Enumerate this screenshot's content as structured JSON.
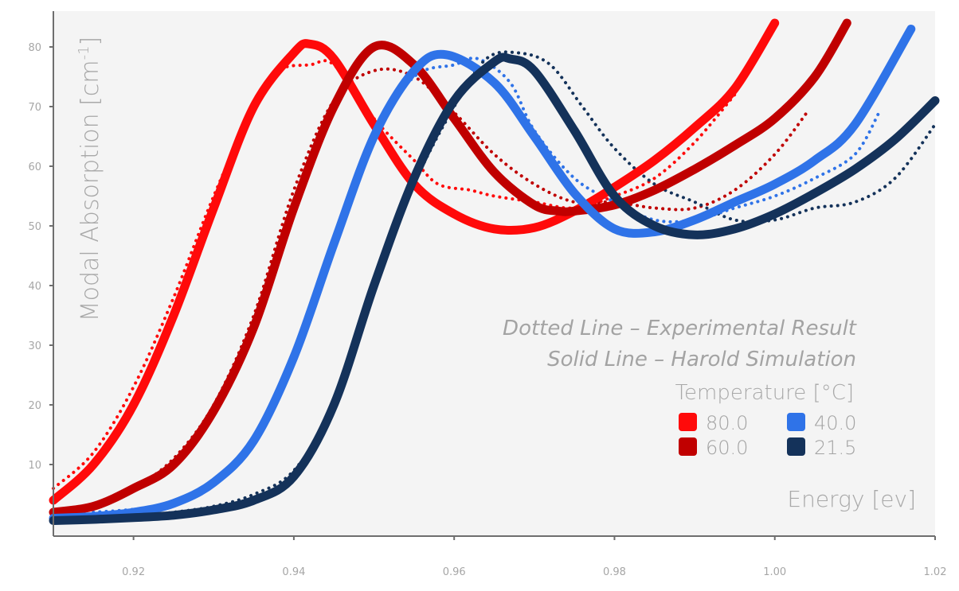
{
  "chart_data": {
    "type": "line",
    "title": "",
    "xlabel": "Energy [ev]",
    "ylabel": "Modal Absorption [cm",
    "ylabel_superscript": "-1",
    "ylabel_close": "]",
    "xlim": [
      0.91,
      1.02
    ],
    "ylim": [
      -2,
      86
    ],
    "xticks": [
      0.92,
      0.94,
      0.96,
      0.98,
      1.0,
      1.02
    ],
    "xtick_labels": [
      "0.92",
      "0.94",
      "0.96",
      "0.98",
      "1.00",
      "1.02"
    ],
    "yticks": [
      10,
      20,
      30,
      40,
      50,
      60,
      70,
      80
    ],
    "ytick_labels": [
      "10",
      "20",
      "30",
      "40",
      "50",
      "60",
      "70",
      "80"
    ],
    "annotations": [
      "Dotted Line – Experimental Result",
      "Solid Line – Harold Simulation"
    ],
    "legend_title": "Temperature [°C]",
    "legend_position": "lower-right",
    "series": [
      {
        "name": "80.0",
        "color": "#ff0a0a",
        "simulation": {
          "x": [
            0.91,
            0.915,
            0.92,
            0.925,
            0.93,
            0.935,
            0.94,
            0.942,
            0.945,
            0.95,
            0.955,
            0.96,
            0.965,
            0.97,
            0.975,
            0.98,
            0.985,
            0.99,
            0.995,
            1.0
          ],
          "y": [
            4,
            10,
            20,
            35,
            53,
            70,
            79,
            80.5,
            78,
            67,
            57,
            52,
            49.5,
            49.7,
            52.5,
            56.5,
            61,
            66.5,
            73,
            84
          ]
        },
        "experimental": {
          "x": [
            0.91,
            0.915,
            0.92,
            0.925,
            0.93,
            0.935,
            0.938,
            0.942,
            0.945,
            0.95,
            0.955,
            0.958,
            0.962,
            0.965,
            0.97,
            0.975,
            0.98,
            0.985,
            0.99,
            0.995
          ],
          "y": [
            6,
            12,
            23,
            38,
            55,
            70,
            76,
            77,
            77,
            68,
            61,
            57,
            56,
            55,
            54,
            53,
            55,
            58,
            64,
            72
          ]
        }
      },
      {
        "name": "60.0",
        "color": "#c00000",
        "simulation": {
          "x": [
            0.91,
            0.915,
            0.92,
            0.925,
            0.93,
            0.935,
            0.94,
            0.945,
            0.95,
            0.955,
            0.96,
            0.965,
            0.97,
            0.973,
            0.975,
            0.98,
            0.985,
            0.99,
            0.995,
            1.0,
            1.005,
            1.009
          ],
          "y": [
            2,
            3,
            6,
            10,
            19,
            33,
            53,
            70,
            80,
            77,
            68,
            59,
            53.5,
            52.5,
            52.5,
            53.5,
            56,
            59.5,
            63.5,
            68,
            75,
            84
          ]
        },
        "experimental": {
          "x": [
            0.915,
            0.92,
            0.925,
            0.93,
            0.935,
            0.94,
            0.945,
            0.95,
            0.955,
            0.96,
            0.965,
            0.97,
            0.975,
            0.98,
            0.985,
            0.99,
            0.995,
            1.0,
            1.004
          ],
          "y": [
            3,
            6,
            11,
            20,
            35,
            56,
            71,
            76,
            75,
            69,
            62,
            57,
            54,
            54,
            53,
            53,
            56,
            62,
            69
          ]
        }
      },
      {
        "name": "40.0",
        "color": "#2f73e8",
        "simulation": {
          "x": [
            0.91,
            0.915,
            0.92,
            0.925,
            0.93,
            0.935,
            0.94,
            0.945,
            0.95,
            0.955,
            0.959,
            0.965,
            0.97,
            0.975,
            0.98,
            0.985,
            0.99,
            0.995,
            1.0,
            1.005,
            1.01,
            1.017
          ],
          "y": [
            1,
            1.3,
            2,
            3.5,
            7,
            14,
            28,
            47,
            65,
            76,
            78.7,
            74,
            65,
            55.5,
            49.5,
            49,
            51,
            54,
            57,
            61,
            67,
            83
          ]
        },
        "experimental": {
          "x": [
            0.915,
            0.92,
            0.925,
            0.93,
            0.935,
            0.94,
            0.945,
            0.95,
            0.955,
            0.96,
            0.963,
            0.967,
            0.97,
            0.975,
            0.98,
            0.985,
            0.99,
            0.995,
            1.0,
            1.005,
            1.01,
            1.013
          ],
          "y": [
            2,
            2.5,
            3.5,
            7,
            14,
            28,
            47,
            65,
            75,
            77,
            78,
            74,
            66,
            58,
            54,
            51,
            51,
            53,
            55,
            58,
            62,
            69
          ]
        }
      },
      {
        "name": "21.5",
        "color": "#14325a",
        "simulation": {
          "x": [
            0.91,
            0.915,
            0.92,
            0.925,
            0.93,
            0.935,
            0.94,
            0.945,
            0.95,
            0.955,
            0.96,
            0.965,
            0.967,
            0.97,
            0.975,
            0.98,
            0.985,
            0.99,
            0.995,
            1.0,
            1.005,
            1.01,
            1.015,
            1.02
          ],
          "y": [
            0.6,
            0.8,
            1.1,
            1.5,
            2.4,
            4,
            8,
            20,
            40,
            58,
            71,
            77.5,
            78,
            76,
            66,
            55,
            50,
            48.5,
            49.5,
            52,
            55.5,
            59.5,
            64.5,
            71
          ]
        },
        "experimental": {
          "x": [
            0.91,
            0.915,
            0.92,
            0.925,
            0.93,
            0.935,
            0.94,
            0.945,
            0.95,
            0.955,
            0.96,
            0.964,
            0.968,
            0.972,
            0.976,
            0.98,
            0.985,
            0.99,
            0.995,
            1.0,
            1.005,
            1.01,
            1.015,
            1.02
          ],
          "y": [
            0.5,
            0.8,
            1.2,
            2,
            3,
            5,
            9,
            20,
            40,
            57,
            70,
            78,
            79,
            77,
            70,
            63,
            57,
            54,
            51,
            51,
            53,
            54,
            58,
            67
          ]
        }
      }
    ]
  }
}
